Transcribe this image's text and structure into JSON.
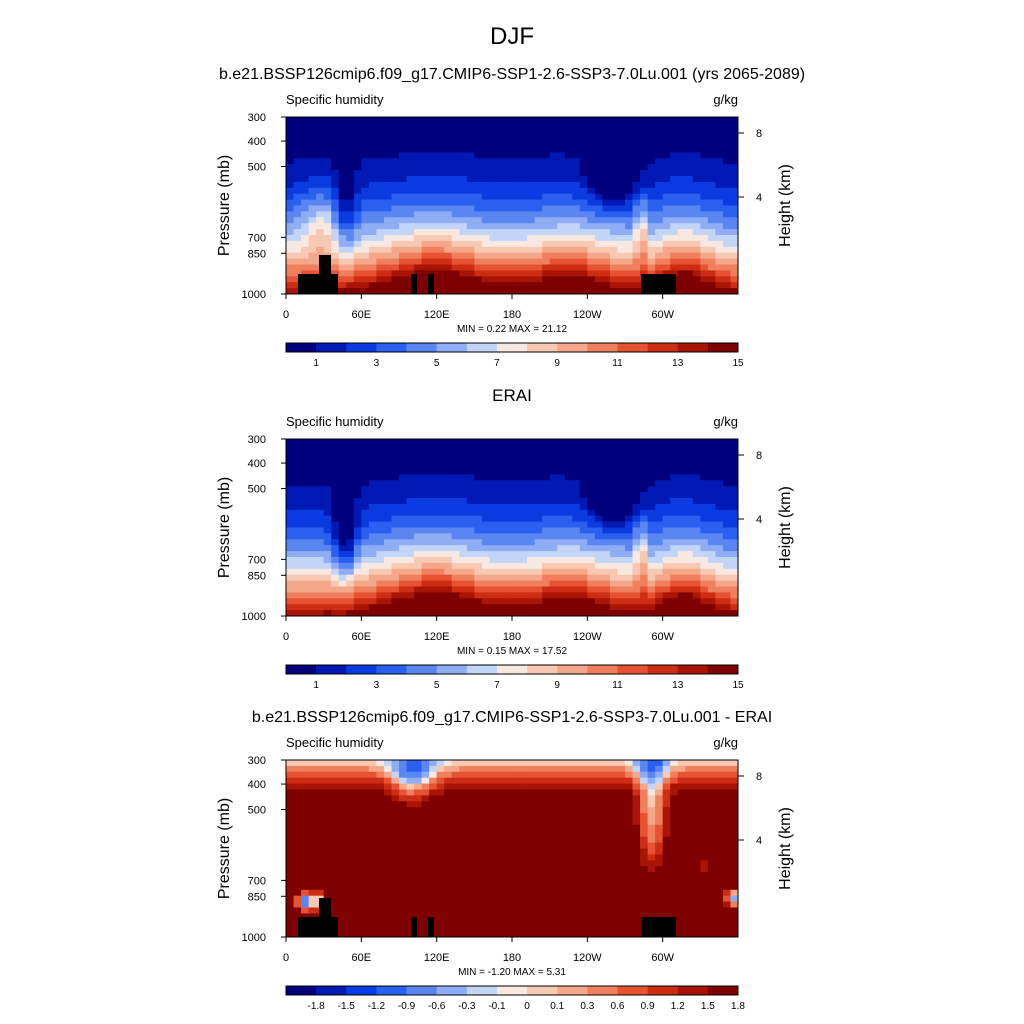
{
  "page_title": "DJF",
  "chart_data": [
    {
      "type": "heatmap",
      "title": "b.e21.BSSP126cmip6.f09_g17.CMIP6-SSP1-2.6-SSP3-7.0Lu.001 (yrs 2065-2089)",
      "subtitle_left": "Specific humidity",
      "subtitle_right": "g/kg",
      "ylabel": "Pressure (mb)",
      "ylabel_right": "Height (km)",
      "x_ticks": [
        "0",
        "60E",
        "120E",
        "180",
        "120W",
        "60W"
      ],
      "y_ticks": [
        "300",
        "400",
        "500",
        "700",
        "850",
        "1000"
      ],
      "y_ticks_right": [
        "8",
        "4"
      ],
      "xlim": [
        0,
        360
      ],
      "ylim": [
        1000,
        300
      ],
      "stats": "MIN =   0.22  MAX =  21.12",
      "colorbar_labels": [
        "1",
        "3",
        "5",
        "7",
        "9",
        "11",
        "13",
        "15"
      ],
      "levels": [
        0.22,
        21.12
      ]
    },
    {
      "type": "heatmap",
      "title": "ERAI",
      "subtitle_left": "Specific humidity",
      "subtitle_right": "g/kg",
      "ylabel": "Pressure (mb)",
      "ylabel_right": "Height (km)",
      "x_ticks": [
        "0",
        "60E",
        "120E",
        "180",
        "120W",
        "60W"
      ],
      "y_ticks": [
        "300",
        "400",
        "500",
        "700",
        "850",
        "1000"
      ],
      "y_ticks_right": [
        "8",
        "4"
      ],
      "xlim": [
        0,
        360
      ],
      "ylim": [
        1000,
        300
      ],
      "stats": "MIN =   0.15  MAX =  17.52",
      "colorbar_labels": [
        "1",
        "3",
        "5",
        "7",
        "9",
        "11",
        "13",
        "15"
      ],
      "levels": [
        0.15,
        17.52
      ]
    },
    {
      "type": "heatmap",
      "title": "b.e21.BSSP126cmip6.f09_g17.CMIP6-SSP1-2.6-SSP3-7.0Lu.001 - ERAI",
      "subtitle_left": "Specific humidity",
      "subtitle_right": "g/kg",
      "ylabel": "Pressure (mb)",
      "ylabel_right": "Height (km)",
      "x_ticks": [
        "0",
        "60E",
        "120E",
        "180",
        "120W",
        "60W"
      ],
      "y_ticks": [
        "300",
        "400",
        "500",
        "700",
        "850",
        "1000"
      ],
      "y_ticks_right": [
        "8",
        "4"
      ],
      "xlim": [
        0,
        360
      ],
      "ylim": [
        1000,
        300
      ],
      "stats": "MIN =  -1.20  MAX =   5.31",
      "colorbar_labels": [
        "-1.8",
        "-1.5",
        "-1.2",
        "-0.9",
        "-0.6",
        "-0.3",
        "-0.1",
        "0",
        "0.1",
        "0.3",
        "0.6",
        "0.9",
        "1.2",
        "1.5",
        "1.8"
      ],
      "levels": [
        -1.2,
        5.31
      ]
    }
  ],
  "colorbar_colors": [
    "#00007f",
    "#0019b4",
    "#0a3be0",
    "#2a60f0",
    "#5a86f2",
    "#8eadf4",
    "#c2d5f7",
    "#f7e9e1",
    "#f7c8b2",
    "#f5a78a",
    "#f07f5e",
    "#e65232",
    "#cd2d12",
    "#a91405",
    "#7f0000"
  ]
}
